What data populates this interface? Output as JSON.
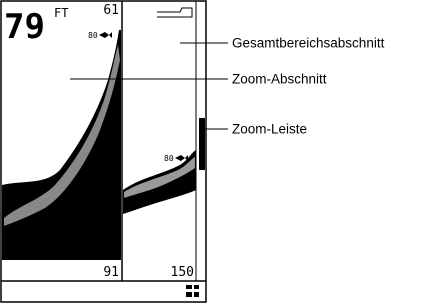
{
  "screen": {
    "depth": "79",
    "unit": "FT",
    "left_pane": {
      "top_value": "61",
      "fish_depth": "80",
      "bottom_value": "91"
    },
    "right_pane": {
      "fish_depth": "80",
      "bottom_value": "150"
    }
  },
  "callouts": [
    {
      "label": "Gesamtbereichsabschnitt"
    },
    {
      "label": "Zoom-Abschnitt"
    },
    {
      "label": "Zoom-Leiste"
    }
  ]
}
